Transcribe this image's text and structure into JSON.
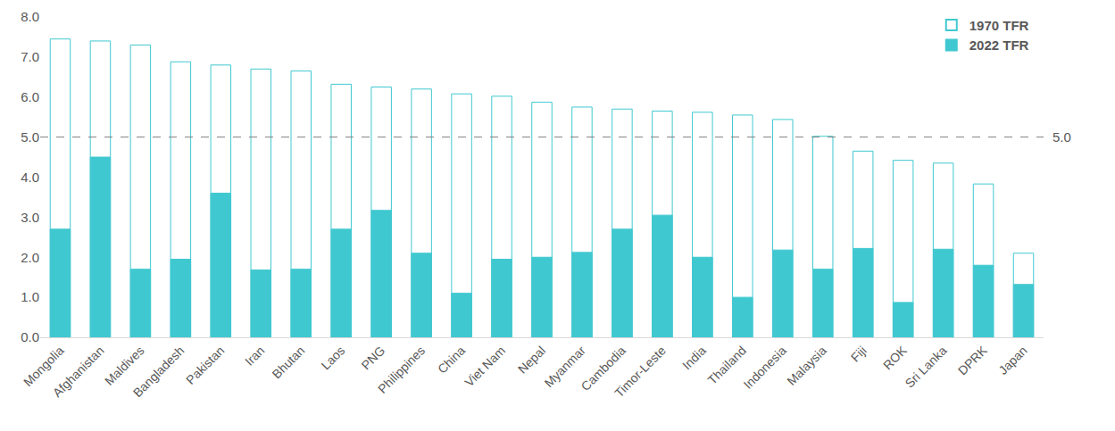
{
  "chart_data": {
    "type": "bar",
    "categories": [
      "Mongolia",
      "Afghanistan",
      "Maldives",
      "Bangladesh",
      "Pakistan",
      "Iran",
      "Bhutan",
      "Laos",
      "PNG",
      "Philippines",
      "China",
      "Viet Nam",
      "Nepal",
      "Myanmar",
      "Cambodia",
      "Timor-Leste",
      "India",
      "Thailand",
      "Indonesia",
      "Malaysia",
      "Fiji",
      "ROK",
      "Sri Lanka",
      "DPRK",
      "Japan"
    ],
    "series": [
      {
        "name": "1970 TFR",
        "color": "#40C8D0",
        "marker": "hollow",
        "values": [
          7.45,
          7.4,
          7.3,
          6.88,
          6.8,
          6.7,
          6.65,
          6.32,
          6.25,
          6.2,
          6.08,
          6.02,
          5.87,
          5.75,
          5.7,
          5.65,
          5.62,
          5.55,
          5.44,
          5.02,
          4.65,
          4.42,
          4.35,
          3.83,
          2.1
        ]
      },
      {
        "name": "2022 TFR",
        "color": "#40C8D0",
        "marker": "filled",
        "values": [
          2.7,
          4.5,
          1.7,
          1.95,
          3.6,
          1.68,
          1.7,
          2.7,
          3.17,
          2.1,
          1.1,
          1.95,
          2.0,
          2.12,
          2.7,
          3.05,
          2.0,
          1.0,
          2.18,
          1.7,
          2.22,
          0.87,
          2.2,
          1.8,
          1.32
        ]
      }
    ],
    "stacked": false,
    "ylim": [
      0,
      8
    ],
    "yticks": [
      {
        "value": 0,
        "label": "0.0"
      },
      {
        "value": 1,
        "label": "1.0"
      },
      {
        "value": 2,
        "label": "2.0"
      },
      {
        "value": 3,
        "label": "3.0"
      },
      {
        "value": 4,
        "label": "4.0"
      },
      {
        "value": 5,
        "label": "5.0"
      },
      {
        "value": 6,
        "label": "6.0"
      },
      {
        "value": 7,
        "label": "7.0"
      },
      {
        "value": 8,
        "label": "8.0"
      }
    ],
    "grid": false,
    "legend": "top-right",
    "annotations": [
      {
        "y": 5.0,
        "text": "5.0",
        "line_style": "dashed"
      }
    ]
  }
}
